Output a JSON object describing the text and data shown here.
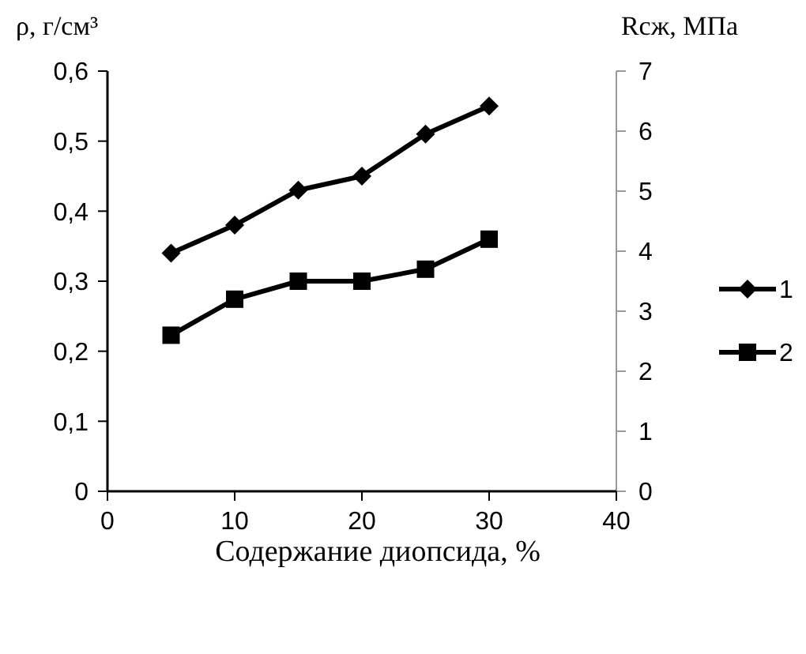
{
  "chart_data": {
    "type": "line",
    "ylabel": "ρ, г/см³",
    "y2label": "Rсж, МПа",
    "xlabel": "Содержание диопсида, %",
    "x": [
      5,
      10,
      15,
      20,
      25,
      30
    ],
    "series": [
      {
        "name": "1",
        "color": "#000000",
        "marker": "diamond",
        "values": [
          0.34,
          0.38,
          0.43,
          0.45,
          0.51,
          0.55
        ]
      },
      {
        "name": "2",
        "color": "#000000",
        "marker": "square",
        "axis": "y2",
        "values": [
          2.6,
          3.2,
          3.5,
          3.5,
          3.7,
          4.2
        ]
      }
    ],
    "xlim": [
      0,
      40
    ],
    "xticks": [
      0,
      10,
      20,
      30,
      40
    ],
    "ylim": [
      0,
      0.6
    ],
    "yticks": [
      {
        "value": 0,
        "label": "0"
      },
      {
        "value": 0.1,
        "label": "0,1"
      },
      {
        "value": 0.2,
        "label": "0,2"
      },
      {
        "value": 0.3,
        "label": "0,3"
      },
      {
        "value": 0.4,
        "label": "0,4"
      },
      {
        "value": 0.5,
        "label": "0,5"
      },
      {
        "value": 0.6,
        "label": "0,6"
      }
    ],
    "y2lim": [
      0,
      7
    ],
    "y2ticks": [
      0,
      1,
      2,
      3,
      4,
      5,
      6,
      7
    ],
    "legend": "right",
    "grid": false
  }
}
